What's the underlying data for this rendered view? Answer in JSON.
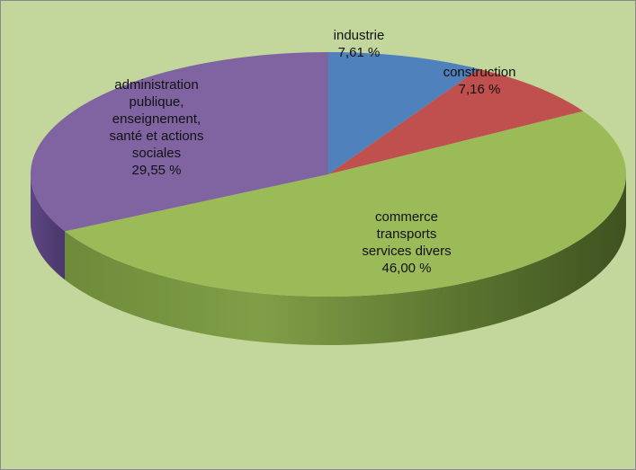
{
  "chart_data": {
    "type": "pie",
    "three_d": true,
    "title": "",
    "legend": "none",
    "slices": [
      {
        "label_lines": [
          "industrie"
        ],
        "value_text": "7,61 %",
        "value": 7.61,
        "color": "#4f81bd"
      },
      {
        "label_lines": [
          "construction"
        ],
        "value_text": "7,16 %",
        "value": 7.16,
        "color": "#c0504d"
      },
      {
        "label_lines": [
          "commerce",
          "transports",
          "services divers"
        ],
        "value_text": "46,00 %",
        "value": 46.0,
        "color": "#9bbb59"
      },
      {
        "label_lines": [
          "administration",
          "publique,",
          "enseignement,",
          "santé et actions",
          "sociales"
        ],
        "value_text": "29,55 %",
        "value": 29.55,
        "color": "#8064a2"
      }
    ]
  },
  "colors": {
    "background": "#c3d69b",
    "frame_border": "#8a8a8a"
  }
}
